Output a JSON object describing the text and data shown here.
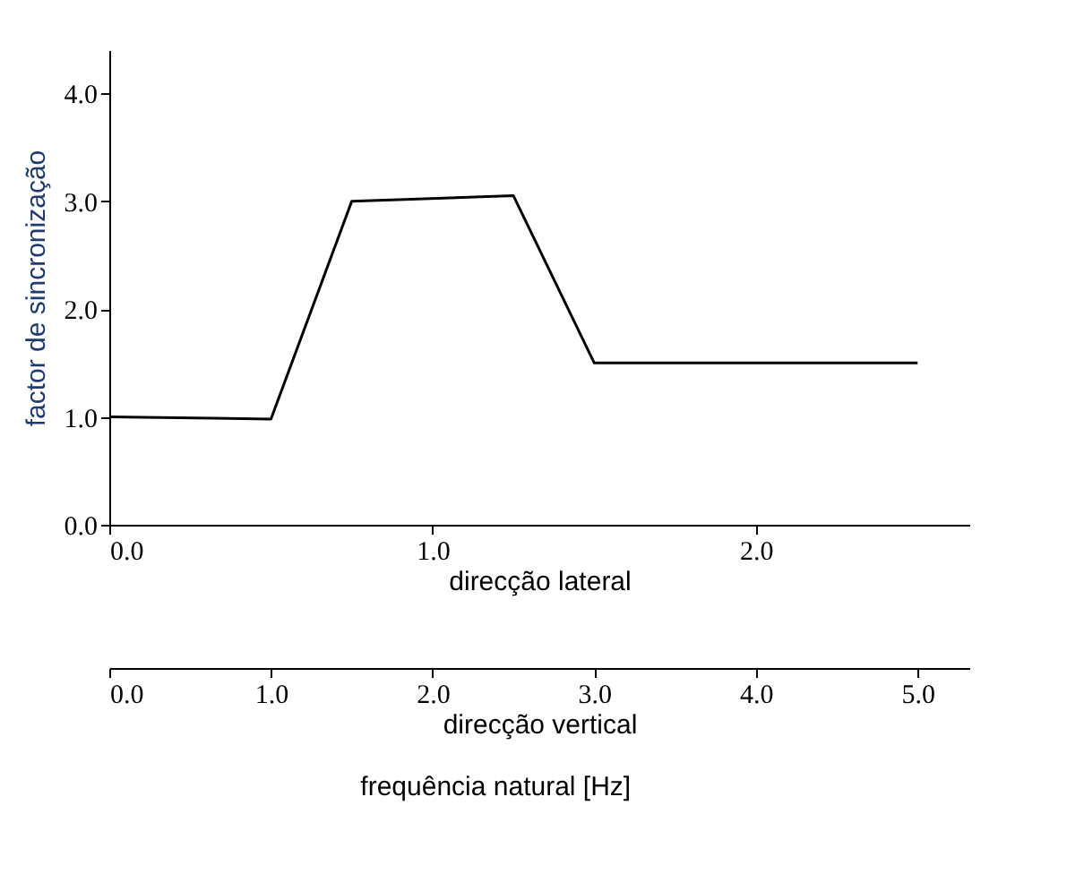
{
  "chart_data": {
    "type": "line",
    "ylabel": "factor de sincronização",
    "xlabel": "direcção lateral",
    "x2label": "direcção vertical",
    "annotations": [
      "frequência natural [Hz]"
    ],
    "xlim": [
      0,
      2.66
    ],
    "xticks": [
      {
        "value": 0,
        "label": "0.0"
      },
      {
        "value": 1,
        "label": "1.0"
      },
      {
        "value": 2,
        "label": "2.0"
      }
    ],
    "x2lim": [
      0,
      5.32
    ],
    "x2ticks": [
      {
        "value": 0,
        "label": "0.0"
      },
      {
        "value": 1,
        "label": "1.0"
      },
      {
        "value": 2,
        "label": "2.0"
      },
      {
        "value": 3,
        "label": "3.0"
      },
      {
        "value": 4,
        "label": "4.0"
      },
      {
        "value": 5,
        "label": "5.0"
      }
    ],
    "ylim": [
      0,
      4.4
    ],
    "yticks": [
      {
        "value": 0,
        "label": "0.0"
      },
      {
        "value": 1,
        "label": "1.0"
      },
      {
        "value": 2,
        "label": "2.0"
      },
      {
        "value": 3,
        "label": "3.0"
      },
      {
        "value": 4,
        "label": "4.0"
      }
    ],
    "grid": false,
    "marker": "none",
    "line_style": "solid",
    "x": [
      0,
      0.5,
      0.75,
      1.25,
      1.5,
      2.5
    ],
    "series": [
      {
        "color": "#000000",
        "values": [
          1.0,
          0.98,
          3.0,
          3.05,
          1.5,
          1.5
        ]
      }
    ]
  }
}
